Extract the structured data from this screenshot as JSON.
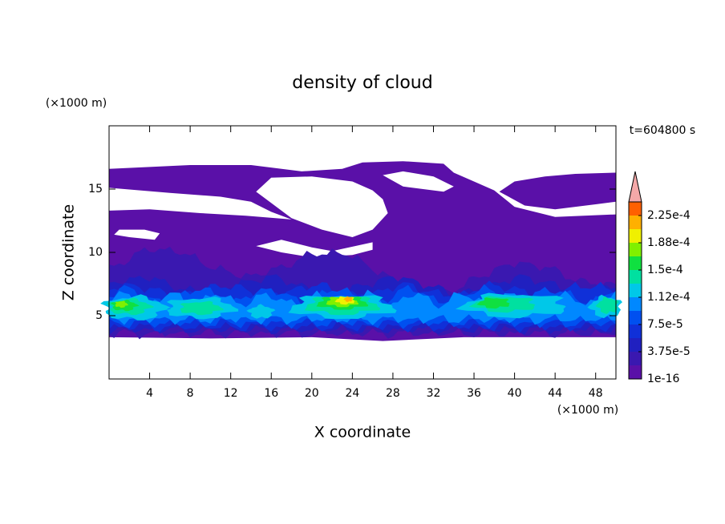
{
  "chart_data": {
    "type": "contour",
    "title": "density of cloud",
    "time_label": "t=604800 s",
    "x_label": "X coordinate",
    "x_unit": "(×1000 m)",
    "y_label": "Z coordinate",
    "y_unit": "(×1000 m)",
    "xlim": [
      0,
      50
    ],
    "xticks": [
      4,
      8,
      12,
      16,
      20,
      24,
      28,
      32,
      36,
      40,
      44,
      48
    ],
    "ylim": [
      0,
      20
    ],
    "yticks": [
      5,
      10,
      15
    ],
    "levels": [
      1e-16,
      1.875e-05,
      3.75e-05,
      5.625e-05,
      7.5e-05,
      9.375e-05,
      0.0001125,
      0.00013125,
      0.00015,
      0.00016875,
      0.0001875,
      0.00020625,
      0.000225,
      0.00024375
    ],
    "colors": [
      "#5a10a8",
      "#3a18b0",
      "#2020c0",
      "#1030d8",
      "#0050f0",
      "#0088ff",
      "#00c8e8",
      "#00e0a0",
      "#10e040",
      "#80f000",
      "#f0f000",
      "#ffb000",
      "#ff6000"
    ],
    "extend_color": "#f4a8a8",
    "colorbar_ticks": [
      {
        "value": 1e-16,
        "label": "1e-16"
      },
      {
        "value": 3.75e-05,
        "label": "3.75e-5"
      },
      {
        "value": 7.5e-05,
        "label": "7.5e-5"
      },
      {
        "value": 0.0001125,
        "label": "1.12e-4"
      },
      {
        "value": 0.00015,
        "label": "1.5e-4"
      },
      {
        "value": 0.0001875,
        "label": "1.88e-4"
      },
      {
        "value": 0.000225,
        "label": "2.25e-4"
      }
    ]
  }
}
